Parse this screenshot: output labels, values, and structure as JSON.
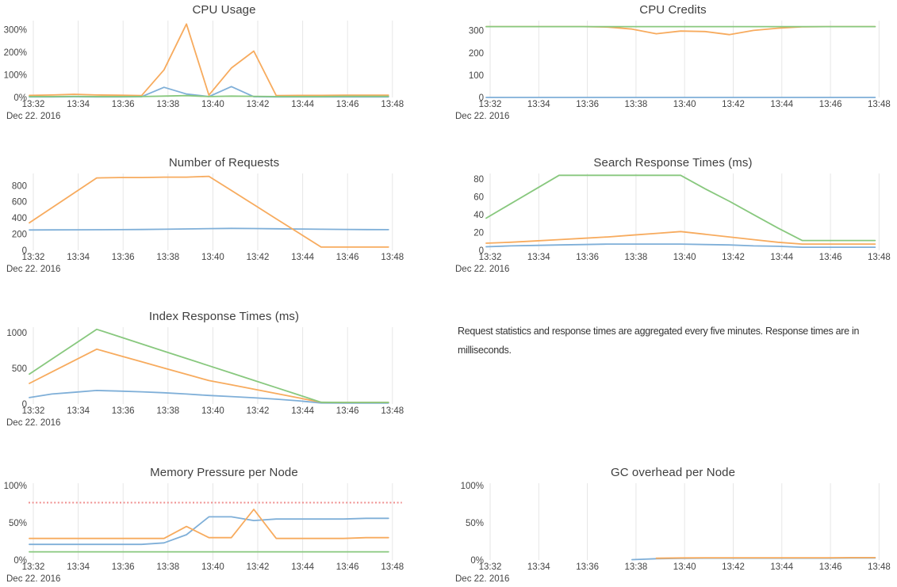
{
  "palette": {
    "blue": "#7fafd8",
    "orange": "#f7ab5e",
    "green": "#88c87e",
    "red": "#ef8e8e",
    "grid": "#e6e6e6",
    "label": "#444444",
    "title": "#3f3f3f"
  },
  "x_axis": {
    "points": [
      "13:32",
      "13:33",
      "13:34",
      "13:35",
      "13:36",
      "13:37",
      "13:38",
      "13:39",
      "13:40",
      "13:41",
      "13:42",
      "13:43",
      "13:44",
      "13:45",
      "13:46",
      "13:47",
      "13:48"
    ],
    "tick_labels": [
      "13:32",
      "13:34",
      "13:36",
      "13:38",
      "13:40",
      "13:42",
      "13:44",
      "13:46",
      "13:48"
    ],
    "date_label": "Dec 22. 2016"
  },
  "note": {
    "text": "Request statistics and response times are aggregated every five minutes. Response times are in milliseconds."
  },
  "chart_data": [
    {
      "type": "line",
      "title": "CPU Usage",
      "ylim": [
        0,
        340
      ],
      "y_ticks": [
        {
          "v": 0,
          "label": "0%"
        },
        {
          "v": 100,
          "label": "100%"
        },
        {
          "v": 200,
          "label": "200%"
        },
        {
          "v": 300,
          "label": "300%"
        }
      ],
      "grid": "vertical",
      "legend": "none",
      "series": [
        {
          "color": "blue",
          "values": [
            2,
            2,
            3,
            2,
            2,
            3,
            45,
            15,
            4,
            48,
            3,
            2,
            2,
            2,
            2,
            2,
            2
          ]
        },
        {
          "color": "orange",
          "values": [
            9,
            11,
            14,
            11,
            10,
            8,
            122,
            325,
            10,
            130,
            205,
            8,
            9,
            9,
            10,
            10,
            10
          ]
        },
        {
          "color": "green",
          "values": [
            4,
            4,
            5,
            4,
            4,
            4,
            6,
            8,
            4,
            6,
            5,
            4,
            4,
            4,
            5,
            5,
            5
          ]
        }
      ]
    },
    {
      "type": "line",
      "title": "CPU Credits",
      "ylim": [
        0,
        345
      ],
      "y_ticks": [
        {
          "v": 0,
          "label": "0"
        },
        {
          "v": 100,
          "label": "100"
        },
        {
          "v": 200,
          "label": "200"
        },
        {
          "v": 300,
          "label": "300"
        }
      ],
      "grid": "vertical",
      "legend": "none",
      "series": [
        {
          "color": "blue",
          "values": [
            0,
            0,
            0,
            0,
            0,
            0,
            0,
            0,
            0,
            0,
            0,
            0,
            0,
            0,
            0,
            0,
            0
          ]
        },
        {
          "color": "orange",
          "values": [
            318,
            318,
            318,
            318,
            318,
            316,
            307,
            286,
            298,
            296,
            282,
            301,
            311,
            317,
            318,
            318,
            318
          ]
        },
        {
          "color": "green",
          "values": [
            318,
            318,
            318,
            318,
            318,
            318,
            318,
            318,
            318,
            318,
            318,
            318,
            318,
            318,
            318,
            318,
            318
          ]
        }
      ]
    },
    {
      "type": "line",
      "title": "Number of Requests",
      "ylim": [
        0,
        950
      ],
      "y_ticks": [
        {
          "v": 0,
          "label": "0"
        },
        {
          "v": 200,
          "label": "200"
        },
        {
          "v": 400,
          "label": "400"
        },
        {
          "v": 600,
          "label": "600"
        },
        {
          "v": 800,
          "label": "800"
        }
      ],
      "grid": "vertical",
      "legend": "none",
      "series": [
        {
          "color": "blue",
          "values": [
            252,
            253,
            254,
            255,
            256,
            258,
            261,
            264,
            268,
            271,
            269,
            266,
            263,
            261,
            259,
            257,
            256
          ]
        },
        {
          "color": "orange",
          "values": [
            340,
            525,
            710,
            895,
            900,
            900,
            905,
            905,
            915,
            740,
            565,
            390,
            215,
            40,
            40,
            40,
            40
          ]
        }
      ]
    },
    {
      "type": "line",
      "title": "Search Response Times (ms)",
      "ylim": [
        0,
        86
      ],
      "y_ticks": [
        {
          "v": 0,
          "label": "0"
        },
        {
          "v": 20,
          "label": "20"
        },
        {
          "v": 40,
          "label": "40"
        },
        {
          "v": 60,
          "label": "60"
        },
        {
          "v": 80,
          "label": "80"
        }
      ],
      "grid": "vertical",
      "legend": "none",
      "series": [
        {
          "color": "blue",
          "values": [
            4,
            5,
            5.5,
            6,
            6.5,
            7,
            7,
            7,
            7,
            6.5,
            6,
            5,
            4.5,
            3.5,
            3.5,
            3.5,
            3.5
          ]
        },
        {
          "color": "orange",
          "values": [
            8,
            9,
            10.5,
            12,
            13.5,
            15,
            17,
            19,
            21,
            18,
            15,
            12,
            9,
            7,
            7,
            7,
            7
          ]
        },
        {
          "color": "green",
          "values": [
            36,
            52,
            68,
            84,
            84,
            84,
            84,
            84,
            84,
            69,
            55,
            40,
            25,
            11,
            11,
            11,
            11
          ]
        }
      ]
    },
    {
      "type": "line",
      "title": "Index Response Times (ms)",
      "ylim": [
        0,
        1080
      ],
      "y_ticks": [
        {
          "v": 0,
          "label": "0"
        },
        {
          "v": 500,
          "label": "500"
        },
        {
          "v": 1000,
          "label": "1000"
        }
      ],
      "grid": "vertical",
      "legend": "none",
      "series": [
        {
          "color": "blue",
          "values": [
            90,
            140,
            165,
            190,
            182,
            172,
            158,
            140,
            120,
            105,
            88,
            68,
            45,
            15,
            13,
            13,
            13
          ]
        },
        {
          "color": "orange",
          "values": [
            290,
            450,
            610,
            770,
            682,
            594,
            506,
            418,
            330,
            269,
            208,
            147,
            86,
            25,
            22,
            22,
            22
          ]
        },
        {
          "color": "green",
          "values": [
            420,
            630,
            840,
            1050,
            948,
            845,
            742,
            640,
            538,
            435,
            333,
            230,
            128,
            25,
            22,
            22,
            22
          ]
        }
      ]
    },
    {
      "type": "line",
      "title": "Memory Pressure per Node",
      "ylim": [
        0,
        103
      ],
      "y_ticks": [
        {
          "v": 0,
          "label": "0%"
        },
        {
          "v": 50,
          "label": "50%"
        },
        {
          "v": 100,
          "label": "100%"
        }
      ],
      "grid": "vertical",
      "legend": "none",
      "threshold": 77,
      "series": [
        {
          "color": "blue",
          "values": [
            21,
            21,
            21,
            21,
            21,
            21,
            23,
            34,
            58,
            58,
            53,
            55,
            55,
            55,
            55,
            56,
            56
          ]
        },
        {
          "color": "orange",
          "values": [
            29,
            29,
            29,
            29,
            29,
            29,
            29,
            45,
            30,
            30,
            68,
            29,
            29,
            29,
            29,
            30,
            30
          ]
        },
        {
          "color": "green",
          "values": [
            11,
            11,
            11,
            11,
            11,
            11,
            11,
            11,
            11,
            11,
            11,
            11,
            11,
            11,
            11,
            11,
            11
          ]
        }
      ]
    },
    {
      "type": "line",
      "title": "GC overhead per Node",
      "ylim": [
        0,
        103
      ],
      "y_ticks": [
        {
          "v": 0,
          "label": "0%"
        },
        {
          "v": 50,
          "label": "50%"
        },
        {
          "v": 100,
          "label": "100%"
        }
      ],
      "grid": "vertical",
      "legend": "none",
      "series": [
        {
          "color": "blue",
          "values": [
            null,
            null,
            null,
            null,
            null,
            null,
            0.5,
            1.8,
            2.3,
            2.5,
            2.5,
            2.5,
            2.5,
            2.5,
            2.6,
            2.8,
            2.8
          ]
        },
        {
          "color": "orange",
          "values": [
            null,
            null,
            null,
            null,
            null,
            null,
            null,
            2.4,
            2.9,
            3.1,
            3.1,
            3.1,
            3.1,
            3.1,
            3.1,
            3.3,
            3.3
          ]
        }
      ]
    }
  ]
}
